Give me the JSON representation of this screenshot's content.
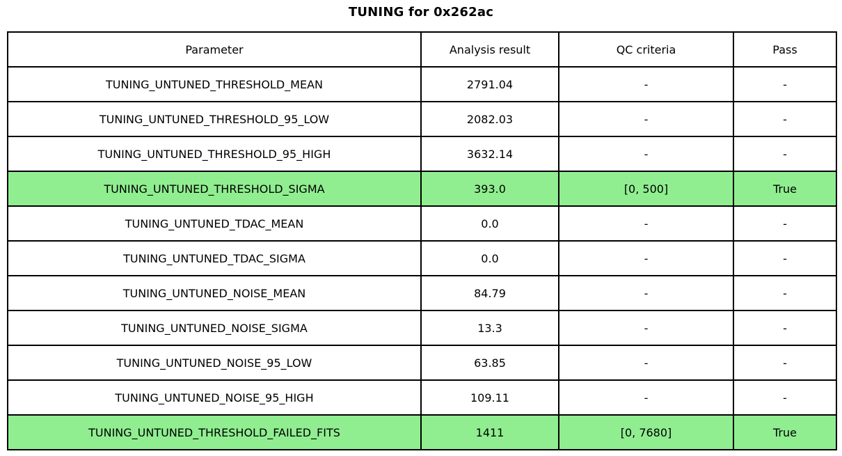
{
  "title": "TUNING for 0x262ac",
  "colors": {
    "background": "#ffffff",
    "border": "#000000",
    "pass_row_highlight": "#90EE90",
    "text": "#000000"
  },
  "table": {
    "headers": [
      "Parameter",
      "Analysis result",
      "QC criteria",
      "Pass"
    ],
    "rows": [
      {
        "parameter": "TUNING_UNTUNED_THRESHOLD_MEAN",
        "analysis_result": "2791.04",
        "qc_criteria": "-",
        "pass": "-",
        "highlighted": false
      },
      {
        "parameter": "TUNING_UNTUNED_THRESHOLD_95_LOW",
        "analysis_result": "2082.03",
        "qc_criteria": "-",
        "pass": "-",
        "highlighted": false
      },
      {
        "parameter": "TUNING_UNTUNED_THRESHOLD_95_HIGH",
        "analysis_result": "3632.14",
        "qc_criteria": "-",
        "pass": "-",
        "highlighted": false
      },
      {
        "parameter": "TUNING_UNTUNED_THRESHOLD_SIGMA",
        "analysis_result": "393.0",
        "qc_criteria": "[0, 500]",
        "pass": "True",
        "highlighted": true
      },
      {
        "parameter": "TUNING_UNTUNED_TDAC_MEAN",
        "analysis_result": "0.0",
        "qc_criteria": "-",
        "pass": "-",
        "highlighted": false
      },
      {
        "parameter": "TUNING_UNTUNED_TDAC_SIGMA",
        "analysis_result": "0.0",
        "qc_criteria": "-",
        "pass": "-",
        "highlighted": false
      },
      {
        "parameter": "TUNING_UNTUNED_NOISE_MEAN",
        "analysis_result": "84.79",
        "qc_criteria": "-",
        "pass": "-",
        "highlighted": false
      },
      {
        "parameter": "TUNING_UNTUNED_NOISE_SIGMA",
        "analysis_result": "13.3",
        "qc_criteria": "-",
        "pass": "-",
        "highlighted": false
      },
      {
        "parameter": "TUNING_UNTUNED_NOISE_95_LOW",
        "analysis_result": "63.85",
        "qc_criteria": "-",
        "pass": "-",
        "highlighted": false
      },
      {
        "parameter": "TUNING_UNTUNED_NOISE_95_HIGH",
        "analysis_result": "109.11",
        "qc_criteria": "-",
        "pass": "-",
        "highlighted": false
      },
      {
        "parameter": "TUNING_UNTUNED_THRESHOLD_FAILED_FITS",
        "analysis_result": "1411",
        "qc_criteria": "[0, 7680]",
        "pass": "True",
        "highlighted": true
      }
    ]
  },
  "chart_data": {
    "type": "table",
    "title": "TUNING for 0x262ac",
    "columns": [
      "Parameter",
      "Analysis result",
      "QC criteria",
      "Pass"
    ],
    "rows": [
      [
        "TUNING_UNTUNED_THRESHOLD_MEAN",
        "2791.04",
        "-",
        "-"
      ],
      [
        "TUNING_UNTUNED_THRESHOLD_95_LOW",
        "2082.03",
        "-",
        "-"
      ],
      [
        "TUNING_UNTUNED_THRESHOLD_95_HIGH",
        "3632.14",
        "-",
        "-"
      ],
      [
        "TUNING_UNTUNED_THRESHOLD_SIGMA",
        "393.0",
        "[0, 500]",
        "True"
      ],
      [
        "TUNING_UNTUNED_TDAC_MEAN",
        "0.0",
        "-",
        "-"
      ],
      [
        "TUNING_UNTUNED_TDAC_SIGMA",
        "0.0",
        "-",
        "-"
      ],
      [
        "TUNING_UNTUNED_NOISE_MEAN",
        "84.79",
        "-",
        "-"
      ],
      [
        "TUNING_UNTUNED_NOISE_SIGMA",
        "13.3",
        "-",
        "-"
      ],
      [
        "TUNING_UNTUNED_NOISE_95_LOW",
        "63.85",
        "-",
        "-"
      ],
      [
        "TUNING_UNTUNED_NOISE_95_HIGH",
        "109.11",
        "-",
        "-"
      ],
      [
        "TUNING_UNTUNED_THRESHOLD_FAILED_FITS",
        "1411",
        "[0, 7680]",
        "True"
      ]
    ],
    "highlighted_row_indices": [
      3,
      10
    ],
    "highlight_color": "#90EE90",
    "layout": "single table figure with centered bold title above"
  }
}
